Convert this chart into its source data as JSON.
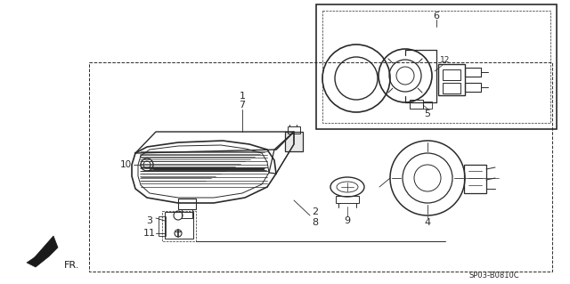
{
  "bg_color": "#ffffff",
  "line_color": "#2a2a2a",
  "diagram_code": "SP03-B0810C",
  "figsize": [
    6.4,
    3.19
  ],
  "dpi": 100
}
